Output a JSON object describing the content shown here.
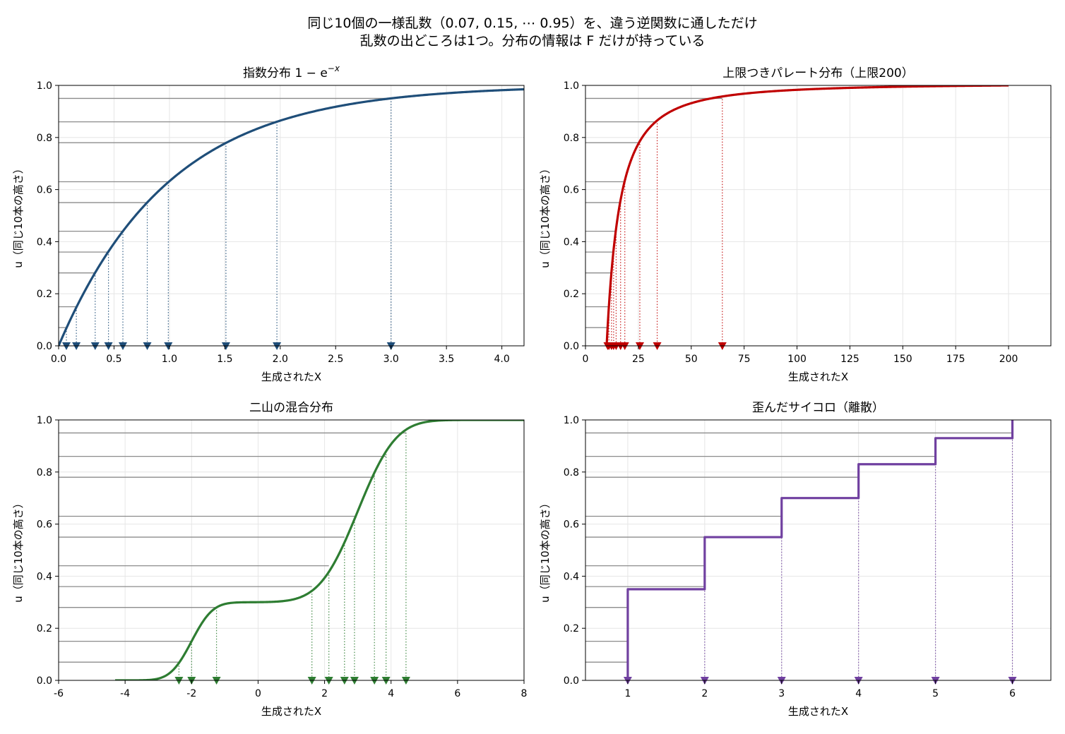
{
  "suptitle": {
    "line1": "同じ10個の一様乱数（0.07, 0.15, ⋯ 0.95）を、違う逆関数に通しただけ",
    "line2": "乱数の出どころは1つ。分布の情報は F だけが持っている"
  },
  "uniforms": [
    0.07,
    0.15,
    0.28,
    0.36,
    0.44,
    0.55,
    0.63,
    0.78,
    0.86,
    0.95
  ],
  "chart_data": [
    {
      "id": "exp",
      "type": "line",
      "title": "指数分布 1 − e",
      "title_sup": "−x",
      "xlabel": "生成されたX",
      "ylabel": "u（同じ10本の高さ）",
      "xlim": [
        0,
        4.2
      ],
      "ylim": [
        0,
        1
      ],
      "xticks": [
        0,
        0.5,
        1,
        1.5,
        2,
        2.5,
        3,
        3.5,
        4
      ],
      "xtick_labels": [
        "0.0",
        "0.5",
        "1.0",
        "1.5",
        "2.0",
        "2.5",
        "3.0",
        "3.5",
        "4.0"
      ],
      "yticks": [
        0,
        0.2,
        0.4,
        0.6,
        0.8,
        1.0
      ],
      "ytick_labels": [
        "0.0",
        "0.2",
        "0.4",
        "0.6",
        "0.8",
        "1.0"
      ],
      "grid": true,
      "color": "#1f4e79",
      "cdf": "exponential",
      "curve_range": [
        0,
        4.2
      ],
      "samples": [
        0.07,
        0.16,
        0.33,
        0.45,
        0.58,
        0.8,
        0.99,
        1.51,
        1.97,
        3.0
      ]
    },
    {
      "id": "pareto",
      "type": "line",
      "title": "上限つきパレート分布（上限200）",
      "xlabel": "生成されたX",
      "ylabel": "u（同じ10本の高さ）",
      "xlim": [
        0,
        220
      ],
      "ylim": [
        0,
        1
      ],
      "xticks": [
        0,
        25,
        50,
        75,
        100,
        125,
        150,
        175,
        200
      ],
      "xtick_labels": [
        "0",
        "25",
        "50",
        "75",
        "100",
        "125",
        "150",
        "175",
        "200"
      ],
      "yticks": [
        0,
        0.2,
        0.4,
        0.6,
        0.8,
        1.0
      ],
      "ytick_labels": [
        "0.0",
        "0.2",
        "0.4",
        "0.6",
        "0.8",
        "1.0"
      ],
      "grid": true,
      "color": "#c00000",
      "cdf": "bounded_pareto",
      "pareto_xm": 10,
      "pareto_alpha": 1.6,
      "pareto_upper": 200,
      "curve_range": [
        10,
        200
      ],
      "samples": [
        10.5,
        11.1,
        12.3,
        13.3,
        14.5,
        16.6,
        18.6,
        25.7,
        33.9,
        64.7
      ]
    },
    {
      "id": "mixture",
      "type": "line",
      "title": "二山の混合分布",
      "xlabel": "生成されたX",
      "ylabel": "u（同じ10本の高さ）",
      "xlim": [
        -6,
        8
      ],
      "ylim": [
        0,
        1
      ],
      "xticks": [
        -6,
        -4,
        -2,
        0,
        2,
        4,
        6,
        8
      ],
      "xtick_labels": [
        "-6",
        "-4",
        "-2",
        "0",
        "2",
        "4",
        "6",
        "8"
      ],
      "yticks": [
        0,
        0.2,
        0.4,
        0.6,
        0.8,
        1.0
      ],
      "ytick_labels": [
        "0.0",
        "0.2",
        "0.4",
        "0.6",
        "0.8",
        "1.0"
      ],
      "grid": true,
      "color": "#2e7d32",
      "cdf": "gaussian_mixture",
      "mixture": [
        {
          "weight": 0.3,
          "mean": -2,
          "sd": 0.5
        },
        {
          "weight": 0.7,
          "mean": 3,
          "sd": 0.9
        }
      ],
      "curve_range": [
        -4.3,
        8
      ],
      "samples": [
        -2.38,
        -2.0,
        -1.25,
        1.62,
        2.13,
        2.6,
        2.9,
        3.5,
        3.85,
        4.45
      ]
    },
    {
      "id": "dice",
      "type": "line",
      "title": "歪んだサイコロ（離散）",
      "xlabel": "生成されたX",
      "ylabel": "u（同じ10本の高さ）",
      "xlim": [
        0.45,
        6.5
      ],
      "ylim": [
        0,
        1
      ],
      "xticks": [
        1,
        2,
        3,
        4,
        5,
        6
      ],
      "xtick_labels": [
        "1",
        "2",
        "3",
        "4",
        "5",
        "6"
      ],
      "yticks": [
        0,
        0.2,
        0.4,
        0.6,
        0.8,
        1.0
      ],
      "ytick_labels": [
        "0.0",
        "0.2",
        "0.4",
        "0.6",
        "0.8",
        "1.0"
      ],
      "grid": true,
      "color": "#7040a0",
      "cdf": "step",
      "step_x": [
        1,
        2,
        3,
        4,
        5,
        6
      ],
      "step_cdf": [
        0.35,
        0.55,
        0.7,
        0.83,
        0.93,
        1.0
      ],
      "samples": [
        1,
        2,
        3,
        4,
        5,
        6
      ]
    }
  ]
}
